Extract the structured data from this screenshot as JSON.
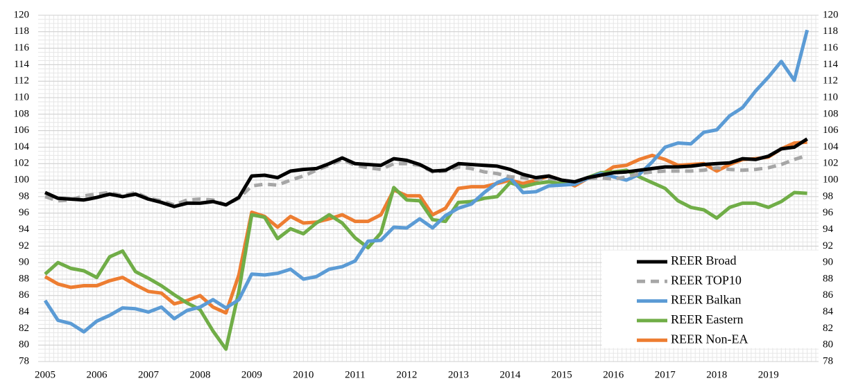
{
  "chart_data": {
    "type": "line",
    "categories": [
      "2005",
      null,
      null,
      null,
      "2006",
      null,
      null,
      null,
      "2007",
      null,
      null,
      null,
      "2008",
      null,
      null,
      null,
      "2009",
      null,
      null,
      null,
      "2010",
      null,
      null,
      null,
      "2011",
      null,
      null,
      null,
      "2012",
      null,
      null,
      null,
      "2013",
      null,
      null,
      null,
      "2014",
      null,
      null,
      null,
      "2015",
      null,
      null,
      null,
      "2016",
      null,
      null,
      null,
      "2017",
      null,
      null,
      null,
      "2018",
      null,
      null,
      null,
      "2019",
      null,
      null,
      null
    ],
    "ylim": [
      78,
      120
    ],
    "yticks": [
      78,
      80,
      82,
      84,
      86,
      88,
      90,
      92,
      94,
      96,
      98,
      100,
      102,
      104,
      106,
      108,
      110,
      112,
      114,
      116,
      118,
      120
    ],
    "y2lim": [
      78,
      120
    ],
    "y2ticks": [
      78,
      80,
      82,
      84,
      86,
      88,
      90,
      92,
      94,
      96,
      98,
      100,
      102,
      104,
      106,
      108,
      110,
      112,
      114,
      116,
      118,
      120
    ],
    "grid": true,
    "legend": "lower right",
    "series": [
      {
        "name": "REER Broad",
        "color": "#000000",
        "dash": false,
        "values": [
          98.5,
          97.8,
          97.7,
          97.6,
          97.9,
          98.3,
          98.0,
          98.3,
          97.7,
          97.3,
          96.8,
          97.2,
          97.2,
          97.4,
          97.0,
          97.9,
          100.5,
          100.6,
          100.3,
          101.1,
          101.3,
          101.4,
          102.0,
          102.7,
          102.0,
          101.9,
          101.8,
          102.6,
          102.4,
          101.9,
          101.1,
          101.2,
          102.0,
          101.9,
          101.8,
          101.7,
          101.3,
          100.7,
          100.3,
          100.5,
          100.0,
          99.8,
          100.3,
          100.6,
          100.9,
          101.0,
          101.2,
          101.4,
          101.6,
          101.6,
          101.7,
          101.9,
          102.0,
          102.1,
          102.6,
          102.5,
          102.9,
          103.8,
          104.0,
          105.0
        ]
      },
      {
        "name": "REER TOP10",
        "color": "#a6a6a6",
        "dash": true,
        "values": [
          98.0,
          97.5,
          97.6,
          98.1,
          98.3,
          98.5,
          98.1,
          98.5,
          97.8,
          97.5,
          97.0,
          97.6,
          97.7,
          97.6,
          97.0,
          97.8,
          99.3,
          99.5,
          99.4,
          100.0,
          100.5,
          101.2,
          101.8,
          102.5,
          101.8,
          101.5,
          101.3,
          102.0,
          102.0,
          101.8,
          101.0,
          101.1,
          101.6,
          101.4,
          101.0,
          100.8,
          100.4,
          100.3,
          100.1,
          100.2,
          100.0,
          99.8,
          100.2,
          100.3,
          100.1,
          100.4,
          100.8,
          101.0,
          101.1,
          101.1,
          101.1,
          101.2,
          101.5,
          101.3,
          101.2,
          101.3,
          101.5,
          101.9,
          102.5,
          103.0
        ]
      },
      {
        "name": "REER Balkan",
        "color": "#5b9bd5",
        "dash": false,
        "values": [
          85.4,
          83.0,
          82.6,
          81.6,
          82.9,
          83.6,
          84.5,
          84.4,
          84.0,
          84.6,
          83.2,
          84.2,
          84.6,
          85.5,
          84.5,
          85.5,
          88.6,
          88.5,
          88.7,
          89.2,
          88.0,
          88.3,
          89.2,
          89.5,
          90.2,
          92.6,
          92.7,
          94.3,
          94.2,
          95.3,
          94.2,
          95.7,
          96.6,
          97.1,
          98.5,
          99.7,
          100.3,
          98.5,
          98.6,
          99.3,
          99.4,
          99.5,
          100.2,
          100.8,
          100.4,
          100.0,
          100.7,
          102.2,
          104.0,
          104.5,
          104.4,
          105.8,
          106.1,
          107.8,
          108.8,
          110.8,
          112.5,
          114.4,
          112.1,
          118.2
        ]
      },
      {
        "name": "REER Eastern",
        "color": "#70ad47",
        "dash": false,
        "values": [
          88.6,
          90.0,
          89.3,
          89.0,
          88.2,
          90.7,
          91.4,
          88.9,
          88.1,
          87.2,
          86.1,
          85.1,
          84.3,
          81.7,
          79.5,
          86.5,
          95.8,
          95.5,
          92.9,
          94.1,
          93.5,
          94.8,
          95.8,
          94.8,
          93.0,
          91.8,
          93.6,
          99.1,
          97.6,
          97.5,
          95.2,
          95.0,
          97.3,
          97.4,
          97.8,
          98.0,
          99.7,
          99.2,
          99.6,
          99.8,
          99.6,
          99.5,
          100.3,
          100.9,
          101.0,
          101.2,
          100.4,
          99.7,
          99.0,
          97.5,
          96.7,
          96.4,
          95.4,
          96.7,
          97.2,
          97.2,
          96.7,
          97.4,
          98.5,
          98.4
        ]
      },
      {
        "name": "REER Non-EA",
        "color": "#ed7d31",
        "dash": false,
        "values": [
          88.3,
          87.4,
          87.0,
          87.2,
          87.2,
          87.8,
          88.2,
          87.3,
          86.5,
          86.3,
          85.0,
          85.4,
          86.0,
          84.6,
          83.9,
          88.5,
          96.1,
          95.6,
          94.3,
          95.6,
          94.8,
          94.9,
          95.3,
          95.8,
          95.0,
          95.0,
          95.8,
          98.8,
          98.1,
          98.1,
          95.8,
          96.6,
          99.0,
          99.2,
          99.2,
          99.6,
          100.0,
          99.6,
          100.0,
          100.5,
          100.0,
          99.3,
          100.2,
          100.6,
          101.6,
          101.8,
          102.5,
          103.0,
          102.5,
          101.8,
          101.9,
          102.0,
          101.1,
          101.9,
          102.5,
          102.6,
          102.8,
          103.8,
          104.5,
          104.6
        ]
      }
    ]
  }
}
